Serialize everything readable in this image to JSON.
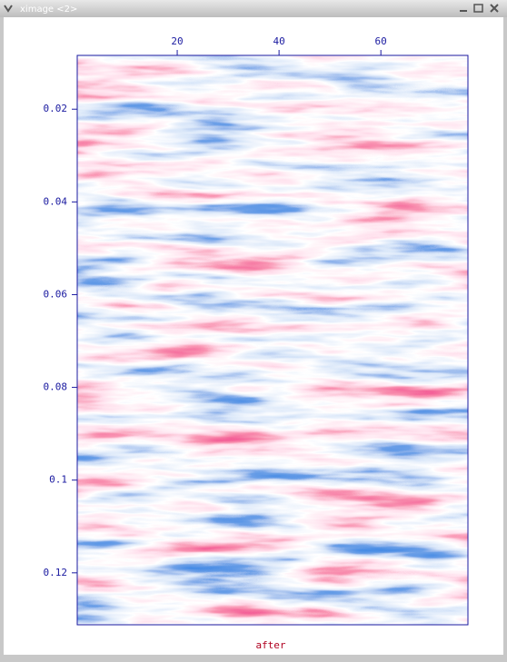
{
  "window": {
    "title": "ximage <2>"
  },
  "chart_data": {
    "type": "image",
    "xlabel": "after",
    "xlim": [
      0.36,
      77.1
    ],
    "xticks": [
      20,
      40,
      60
    ],
    "ylim": [
      0.0084,
      0.1312
    ],
    "yticks": [
      0.02,
      0.04,
      0.06,
      0.08,
      0.1,
      0.12
    ],
    "y_inverted": true,
    "axis_color": "#1a1aa0",
    "label_color": "#b00020"
  }
}
